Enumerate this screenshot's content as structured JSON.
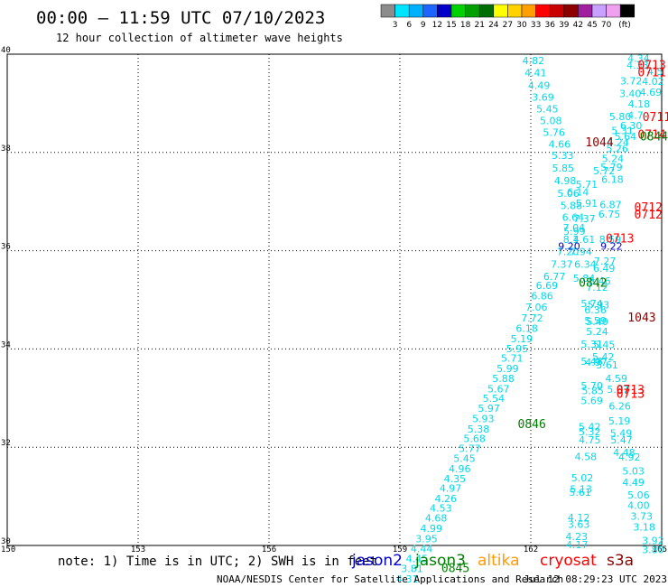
{
  "header": {
    "title": "00:00 – 11:59 UTC 07/10/2023",
    "subtitle": "12 hour collection of altimeter wave heights"
  },
  "colorbar": {
    "unit": "(ft)",
    "items": [
      {
        "label": "",
        "color": "#8c8c8c"
      },
      {
        "label": "3",
        "color": "#00e5ff"
      },
      {
        "label": "6",
        "color": "#00b0ff"
      },
      {
        "label": "9",
        "color": "#1e64ff"
      },
      {
        "label": "12",
        "color": "#0000c8"
      },
      {
        "label": "15",
        "color": "#00d200"
      },
      {
        "label": "18",
        "color": "#00a000"
      },
      {
        "label": "21",
        "color": "#006e00"
      },
      {
        "label": "24",
        "color": "#ffff00"
      },
      {
        "label": "27",
        "color": "#ffd200"
      },
      {
        "label": "30",
        "color": "#ffa000"
      },
      {
        "label": "33",
        "color": "#ff0000"
      },
      {
        "label": "36",
        "color": "#c80000"
      },
      {
        "label": "39",
        "color": "#8c0000"
      },
      {
        "label": "42",
        "color": "#a020a0"
      },
      {
        "label": "45",
        "color": "#c8a0ff"
      },
      {
        "label": "70",
        "color": "#f0a0f0"
      },
      {
        "label": "",
        "color": "#000000"
      }
    ]
  },
  "footer": {
    "note": "note: 1) Time is in UTC; 2) SWH is in feet",
    "credit": "NOAA/NESDIS Center for Satellite Applications and Research",
    "timestamp": "Jul 12 08:29:23 UTC 2023",
    "satellites": [
      {
        "name": "jason2",
        "color": "#0000cc"
      },
      {
        "name": "jason3",
        "color": "#008000"
      },
      {
        "name": "altika",
        "color": "#ff9900"
      },
      {
        "name": "cryosat",
        "color": "#ff0000"
      },
      {
        "name": "s3a",
        "color": "#8b0000"
      }
    ]
  },
  "chart_data": {
    "type": "scatter",
    "xlim": [
      150,
      165
    ],
    "ylim": [
      30,
      40
    ],
    "x_ticks": [
      "150",
      "153",
      "156",
      "159",
      "162",
      "165"
    ],
    "y_ticks": [
      "30",
      "32",
      "34",
      "36",
      "38",
      "40"
    ],
    "grid": true,
    "wave_color": "#00d8ea",
    "wave_heights": [
      {
        "lon": 162.06,
        "lat": 39.87,
        "text": "4.82"
      },
      {
        "lon": 162.11,
        "lat": 39.62,
        "text": "4.41"
      },
      {
        "lon": 162.19,
        "lat": 39.37,
        "text": "4.49"
      },
      {
        "lon": 162.28,
        "lat": 39.13,
        "text": "3.69"
      },
      {
        "lon": 162.38,
        "lat": 38.89,
        "text": "5.45"
      },
      {
        "lon": 162.46,
        "lat": 38.65,
        "text": "5.08"
      },
      {
        "lon": 162.53,
        "lat": 38.41,
        "text": "5.76"
      },
      {
        "lon": 162.66,
        "lat": 38.17,
        "text": "4.66"
      },
      {
        "lon": 162.73,
        "lat": 37.94,
        "text": "5.33"
      },
      {
        "lon": 162.74,
        "lat": 37.68,
        "text": "5.85"
      },
      {
        "lon": 162.79,
        "lat": 37.43,
        "text": "4.98"
      },
      {
        "lon": 162.86,
        "lat": 37.17,
        "text": "5.06"
      },
      {
        "lon": 162.93,
        "lat": 36.92,
        "text": "5.88"
      },
      {
        "lon": 162.97,
        "lat": 36.68,
        "text": "6.64"
      },
      {
        "lon": 162.99,
        "lat": 36.47,
        "text": "7.04"
      },
      {
        "lon": 162.92,
        "lat": 36.23,
        "text": "8.1"
      },
      {
        "lon": 162.85,
        "lat": 35.98,
        "text": "7.20"
      },
      {
        "lon": 162.71,
        "lat": 35.73,
        "text": "7.37"
      },
      {
        "lon": 162.54,
        "lat": 35.48,
        "text": "6.77"
      },
      {
        "lon": 162.37,
        "lat": 35.29,
        "text": "6.69"
      },
      {
        "lon": 162.26,
        "lat": 35.08,
        "text": "6.86"
      },
      {
        "lon": 162.13,
        "lat": 34.85,
        "text": "7.06"
      },
      {
        "lon": 162.03,
        "lat": 34.63,
        "text": "7.72"
      },
      {
        "lon": 161.91,
        "lat": 34.42,
        "text": "6.18"
      },
      {
        "lon": 161.79,
        "lat": 34.21,
        "text": "5.19"
      },
      {
        "lon": 161.69,
        "lat": 34.01,
        "text": "5.95"
      },
      {
        "lon": 161.57,
        "lat": 33.81,
        "text": "5.71"
      },
      {
        "lon": 161.47,
        "lat": 33.6,
        "text": "5.99"
      },
      {
        "lon": 161.37,
        "lat": 33.4,
        "text": "5.88"
      },
      {
        "lon": 161.26,
        "lat": 33.19,
        "text": "5.67"
      },
      {
        "lon": 161.15,
        "lat": 33.0,
        "text": "5.54"
      },
      {
        "lon": 161.04,
        "lat": 32.79,
        "text": "5.97"
      },
      {
        "lon": 160.91,
        "lat": 32.58,
        "text": "5.93"
      },
      {
        "lon": 160.8,
        "lat": 32.37,
        "text": "5.38"
      },
      {
        "lon": 160.71,
        "lat": 32.18,
        "text": "5.68"
      },
      {
        "lon": 160.6,
        "lat": 31.98,
        "text": "5.77"
      },
      {
        "lon": 160.48,
        "lat": 31.77,
        "text": "5.45"
      },
      {
        "lon": 160.37,
        "lat": 31.56,
        "text": "4.96"
      },
      {
        "lon": 160.26,
        "lat": 31.36,
        "text": "4.35"
      },
      {
        "lon": 160.16,
        "lat": 31.17,
        "text": "4.97"
      },
      {
        "lon": 160.05,
        "lat": 30.96,
        "text": "4.26"
      },
      {
        "lon": 159.94,
        "lat": 30.76,
        "text": "4.53"
      },
      {
        "lon": 159.83,
        "lat": 30.56,
        "text": "4.68"
      },
      {
        "lon": 159.72,
        "lat": 30.35,
        "text": "4.99"
      },
      {
        "lon": 159.61,
        "lat": 30.14,
        "text": "3.95"
      },
      {
        "lon": 159.5,
        "lat": 29.94,
        "text": "4.44"
      },
      {
        "lon": 159.39,
        "lat": 29.73,
        "text": "4.45"
      },
      {
        "lon": 159.28,
        "lat": 29.53,
        "text": "3.81"
      },
      {
        "lon": 159.17,
        "lat": 29.32,
        "text": "4.31"
      },
      {
        "lon": 164.47,
        "lat": 39.92,
        "text": "4.34"
      },
      {
        "lon": 164.45,
        "lat": 39.78,
        "text": "4.33"
      },
      {
        "lon": 164.3,
        "lat": 39.46,
        "text": "3.72"
      },
      {
        "lon": 164.28,
        "lat": 39.2,
        "text": "3.40"
      },
      {
        "lon": 164.48,
        "lat": 38.99,
        "text": "4.18"
      },
      {
        "lon": 164.3,
        "lat": 38.55,
        "text": "6.30"
      },
      {
        "lon": 164.05,
        "lat": 38.73,
        "text": "5.80"
      },
      {
        "lon": 164.4,
        "lat": 38.76,
        "text": "4.7"
      },
      {
        "lon": 164.1,
        "lat": 38.45,
        "text": "5.31"
      },
      {
        "lon": 164.17,
        "lat": 38.33,
        "text": "5.64"
      },
      {
        "lon": 164.0,
        "lat": 38.21,
        "text": "4.24"
      },
      {
        "lon": 163.98,
        "lat": 38.08,
        "text": "5.26"
      },
      {
        "lon": 163.88,
        "lat": 37.88,
        "text": "5.24"
      },
      {
        "lon": 163.85,
        "lat": 37.7,
        "text": "5.79"
      },
      {
        "lon": 163.68,
        "lat": 37.63,
        "text": "5.72"
      },
      {
        "lon": 163.87,
        "lat": 37.45,
        "text": "6.18"
      },
      {
        "lon": 163.28,
        "lat": 37.35,
        "text": "5.71"
      },
      {
        "lon": 163.08,
        "lat": 37.2,
        "text": "6.14"
      },
      {
        "lon": 163.28,
        "lat": 36.97,
        "text": "5.91"
      },
      {
        "lon": 163.83,
        "lat": 36.94,
        "text": "6.87"
      },
      {
        "lon": 163.8,
        "lat": 36.75,
        "text": "6.75"
      },
      {
        "lon": 163.23,
        "lat": 36.65,
        "text": "7.37"
      },
      {
        "lon": 163.0,
        "lat": 36.4,
        "text": "5.99"
      },
      {
        "lon": 163.22,
        "lat": 36.23,
        "text": "4.61"
      },
      {
        "lon": 163.82,
        "lat": 36.23,
        "text": "8.59"
      },
      {
        "lon": 163.15,
        "lat": 35.98,
        "text": "7.94"
      },
      {
        "lon": 163.7,
        "lat": 35.79,
        "text": "7.27"
      },
      {
        "lon": 163.25,
        "lat": 35.73,
        "text": "6.34"
      },
      {
        "lon": 163.68,
        "lat": 35.64,
        "text": "6.49"
      },
      {
        "lon": 163.58,
        "lat": 35.39,
        "text": "6.46"
      },
      {
        "lon": 163.22,
        "lat": 35.44,
        "text": "5.84"
      },
      {
        "lon": 163.52,
        "lat": 35.26,
        "text": "7.12"
      },
      {
        "lon": 163.4,
        "lat": 34.93,
        "text": "5.74"
      },
      {
        "lon": 163.55,
        "lat": 34.9,
        "text": "5.93"
      },
      {
        "lon": 163.48,
        "lat": 34.8,
        "text": "6.36"
      },
      {
        "lon": 163.48,
        "lat": 34.58,
        "text": "5.59"
      },
      {
        "lon": 163.52,
        "lat": 34.56,
        "text": "5.40"
      },
      {
        "lon": 163.52,
        "lat": 34.36,
        "text": "5.24"
      },
      {
        "lon": 163.4,
        "lat": 34.1,
        "text": "5.31"
      },
      {
        "lon": 163.68,
        "lat": 34.09,
        "text": "5.45"
      },
      {
        "lon": 163.66,
        "lat": 33.84,
        "text": "5.42"
      },
      {
        "lon": 163.4,
        "lat": 33.75,
        "text": "5.48"
      },
      {
        "lon": 163.5,
        "lat": 33.73,
        "text": "4.97"
      },
      {
        "lon": 163.75,
        "lat": 33.68,
        "text": "5.61"
      },
      {
        "lon": 163.96,
        "lat": 33.4,
        "text": "4.59"
      },
      {
        "lon": 163.4,
        "lat": 33.25,
        "text": "5.70"
      },
      {
        "lon": 163.42,
        "lat": 33.15,
        "text": "5.85"
      },
      {
        "lon": 164.0,
        "lat": 33.18,
        "text": "5.07"
      },
      {
        "lon": 163.4,
        "lat": 32.95,
        "text": "5.69"
      },
      {
        "lon": 164.04,
        "lat": 32.84,
        "text": "6.26"
      },
      {
        "lon": 164.03,
        "lat": 32.54,
        "text": "5.19"
      },
      {
        "lon": 163.35,
        "lat": 32.42,
        "text": "5.42"
      },
      {
        "lon": 164.07,
        "lat": 32.29,
        "text": "5.49"
      },
      {
        "lon": 163.35,
        "lat": 32.32,
        "text": "5.32"
      },
      {
        "lon": 163.35,
        "lat": 32.15,
        "text": "4.75"
      },
      {
        "lon": 164.08,
        "lat": 32.15,
        "text": "5.47"
      },
      {
        "lon": 164.14,
        "lat": 31.89,
        "text": "4.48"
      },
      {
        "lon": 163.26,
        "lat": 31.81,
        "text": "4.58"
      },
      {
        "lon": 164.26,
        "lat": 31.8,
        "text": "4.92"
      },
      {
        "lon": 164.35,
        "lat": 31.52,
        "text": "5.03"
      },
      {
        "lon": 163.18,
        "lat": 31.38,
        "text": "5.02"
      },
      {
        "lon": 164.35,
        "lat": 31.29,
        "text": "4.49"
      },
      {
        "lon": 163.15,
        "lat": 31.15,
        "text": "5.13"
      },
      {
        "lon": 163.13,
        "lat": 31.08,
        "text": "5.61"
      },
      {
        "lon": 164.47,
        "lat": 31.03,
        "text": "5.06"
      },
      {
        "lon": 164.47,
        "lat": 30.82,
        "text": "4.00"
      },
      {
        "lon": 163.1,
        "lat": 30.57,
        "text": "4.12"
      },
      {
        "lon": 164.54,
        "lat": 30.6,
        "text": "3.73"
      },
      {
        "lon": 163.1,
        "lat": 30.43,
        "text": "3.63"
      },
      {
        "lon": 164.6,
        "lat": 30.38,
        "text": "3.18"
      },
      {
        "lon": 163.05,
        "lat": 30.18,
        "text": "4.23"
      },
      {
        "lon": 164.8,
        "lat": 30.1,
        "text": "3.92"
      },
      {
        "lon": 163.06,
        "lat": 30.02,
        "text": "4.17"
      },
      {
        "lon": 164.8,
        "lat": 29.92,
        "text": "3.80"
      },
      {
        "lon": 164.85,
        "lat": 39.65,
        "text": "4.5"
      },
      {
        "lon": 164.8,
        "lat": 39.45,
        "text": "4.02"
      },
      {
        "lon": 164.75,
        "lat": 39.23,
        "text": "4.69"
      }
    ],
    "other_values": [
      {
        "lon": 162.88,
        "lat": 36.09,
        "text": "9.20",
        "color": "#0000cc"
      },
      {
        "lon": 163.85,
        "lat": 36.09,
        "text": "9.22",
        "color": "#0000cc"
      }
    ],
    "time_labels": [
      {
        "lon": 164.45,
        "lat": 39.79,
        "text": "0713",
        "color": "#ff0000"
      },
      {
        "lon": 164.45,
        "lat": 39.64,
        "text": "0711",
        "color": "#ff0000"
      },
      {
        "lon": 164.56,
        "lat": 38.73,
        "text": "0711",
        "color": "#ff0000"
      },
      {
        "lon": 164.45,
        "lat": 38.37,
        "text": "0714",
        "color": "#ff0000"
      },
      {
        "lon": 164.5,
        "lat": 38.34,
        "text": "0844",
        "color": "#008000"
      },
      {
        "lon": 164.37,
        "lat": 36.89,
        "text": "0712",
        "color": "#ff0000"
      },
      {
        "lon": 164.37,
        "lat": 36.75,
        "text": "0712",
        "color": "#ff0000"
      },
      {
        "lon": 163.1,
        "lat": 35.36,
        "text": "0842",
        "color": "#008000"
      },
      {
        "lon": 163.72,
        "lat": 36.26,
        "text": "0713",
        "color": "#ff0000"
      },
      {
        "lon": 163.96,
        "lat": 33.18,
        "text": "0713",
        "color": "#ff0000"
      },
      {
        "lon": 163.96,
        "lat": 33.1,
        "text": "0713",
        "color": "#ff0000"
      },
      {
        "lon": 161.7,
        "lat": 32.48,
        "text": "0846",
        "color": "#008000"
      },
      {
        "lon": 159.95,
        "lat": 29.55,
        "text": "0845",
        "color": "#008000"
      },
      {
        "lon": 163.25,
        "lat": 38.22,
        "text": "1044",
        "color": "#8b0000"
      },
      {
        "lon": 164.22,
        "lat": 34.65,
        "text": "1043",
        "color": "#8b0000"
      }
    ]
  }
}
